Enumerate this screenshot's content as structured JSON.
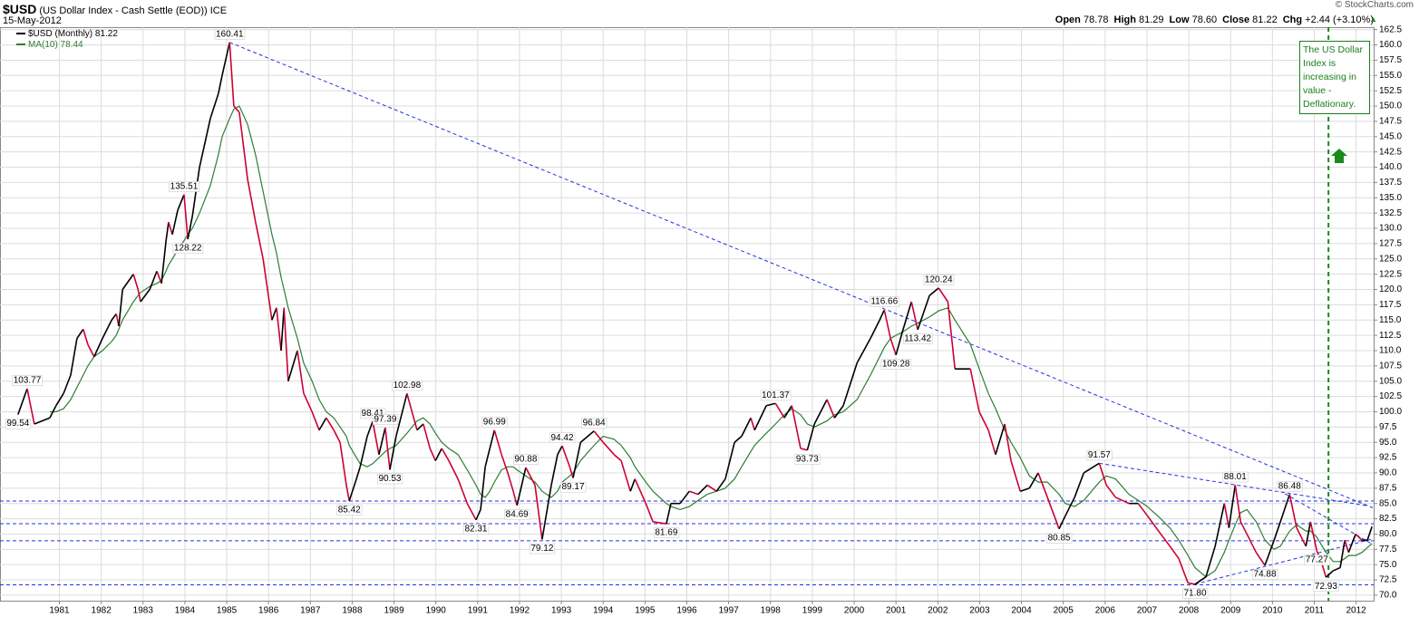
{
  "header": {
    "symbol": "$USD",
    "description": "(US Dollar Index - Cash Settle (EOD))",
    "exchange": "ICE",
    "date": "15-May-2012",
    "copyright": "© StockCharts.com",
    "quote": [
      {
        "label": "Open",
        "value": "78.78"
      },
      {
        "label": "High",
        "value": "81.29"
      },
      {
        "label": "Low",
        "value": "78.60"
      },
      {
        "label": "Close",
        "value": "81.22"
      },
      {
        "label": "Chg",
        "value": "+2.44 (+3.10%)"
      }
    ],
    "note": "The US Dollar Index is increasing in value - Deflationary."
  },
  "chart_data": {
    "type": "line",
    "up_color": "#000000",
    "down_color": "#cc0033",
    "grid": true,
    "x": [
      1980.01,
      1980.23,
      1980.4,
      1980.77,
      1980.92,
      1981.1,
      1981.27,
      1981.42,
      1981.57,
      1981.68,
      1981.83,
      1982.03,
      1982.25,
      1982.36,
      1982.42,
      1982.51,
      1982.77,
      1982.88,
      1982.94,
      1983.16,
      1983.33,
      1983.44,
      1983.55,
      1983.61,
      1983.7,
      1983.83,
      1983.98,
      1984.07,
      1984.18,
      1984.35,
      1984.61,
      1984.8,
      1984.89,
      1985.07,
      1985.17,
      1985.3,
      1985.5,
      1985.69,
      1985.87,
      1986.08,
      1986.19,
      1986.3,
      1986.37,
      1986.47,
      1986.69,
      1986.84,
      1987.04,
      1987.21,
      1987.38,
      1987.56,
      1987.71,
      1987.86,
      1987.93,
      1988.1,
      1988.19,
      1988.36,
      1988.49,
      1988.64,
      1988.79,
      1988.9,
      1989.05,
      1989.31,
      1989.55,
      1989.7,
      1989.86,
      1989.99,
      1990.14,
      1990.31,
      1990.53,
      1990.75,
      1990.96,
      1991.07,
      1991.18,
      1991.29,
      1991.4,
      1991.57,
      1991.72,
      1991.85,
      1991.94,
      1992.15,
      1992.37,
      1992.54,
      1992.76,
      1992.91,
      1993.02,
      1993.2,
      1993.28,
      1993.46,
      1993.78,
      1994.0,
      1994.26,
      1994.43,
      1994.65,
      1994.76,
      1995.02,
      1995.19,
      1995.51,
      1995.62,
      1995.84,
      1996.06,
      1996.27,
      1996.49,
      1996.71,
      1996.92,
      1997.14,
      1997.31,
      1997.53,
      1997.62,
      1997.9,
      1998.12,
      1998.33,
      1998.51,
      1998.72,
      1998.88,
      1999.05,
      1999.35,
      1999.53,
      1999.74,
      2000.07,
      2000.39,
      2000.61,
      2000.72,
      2000.87,
      2001.0,
      2001.15,
      2001.37,
      2001.52,
      2001.8,
      2002.02,
      2002.24,
      2002.41,
      2002.78,
      2002.99,
      2003.21,
      2003.38,
      2003.6,
      2003.75,
      2003.97,
      2004.19,
      2004.4,
      2004.62,
      2004.9,
      2005.05,
      2005.27,
      2005.49,
      2005.86,
      2006.03,
      2006.25,
      2006.57,
      2006.79,
      2007.01,
      2007.33,
      2007.55,
      2007.76,
      2007.98,
      2008.15,
      2008.41,
      2008.63,
      2008.85,
      2008.96,
      2009.11,
      2009.24,
      2009.39,
      2009.61,
      2009.82,
      2010.04,
      2010.19,
      2010.41,
      2010.58,
      2010.8,
      2010.91,
      2011.06,
      2011.19,
      2011.28,
      2011.45,
      2011.62,
      2011.73,
      2011.82,
      2011.99,
      2012.14,
      2012.27,
      2012.38
    ],
    "series": [
      {
        "name": "$USD (Monthly) 81.22",
        "color": "#000000",
        "values": [
          99.54,
          103.77,
          98,
          99,
          101,
          103,
          106,
          112,
          113.5,
          111,
          109,
          112,
          115,
          116,
          114,
          120,
          122.5,
          120,
          118,
          120,
          123,
          121,
          128,
          131,
          129,
          133,
          135.51,
          128.22,
          132,
          140,
          148,
          152,
          155,
          160.41,
          150,
          149,
          138,
          131,
          125,
          115,
          117,
          110,
          117,
          105,
          110,
          103,
          100,
          97,
          99,
          97,
          95,
          88,
          85.42,
          89,
          91,
          96,
          98.41,
          93,
          97.39,
          90.53,
          96,
          102.98,
          97,
          98,
          94,
          92,
          94,
          92,
          89,
          85,
          82.31,
          84,
          91,
          94,
          96.99,
          93,
          90,
          87,
          84.69,
          90.88,
          88,
          79.12,
          88,
          93,
          94.42,
          91,
          89.17,
          95,
          96.84,
          95,
          93,
          92,
          87,
          89,
          85,
          82,
          81.69,
          85,
          85,
          87,
          86.5,
          88,
          87,
          89,
          95,
          96,
          99,
          97,
          101,
          101.37,
          99,
          101,
          94,
          93.73,
          98,
          102,
          99,
          101,
          108,
          112,
          115,
          116.66,
          112,
          109.28,
          113,
          118,
          113.42,
          119,
          120.24,
          118,
          107,
          107,
          100,
          97,
          93,
          98,
          92,
          87,
          87.5,
          90,
          86,
          80.85,
          83,
          86,
          90,
          91.57,
          88,
          86,
          85,
          85,
          83,
          80,
          78,
          76,
          72,
          71.8,
          73,
          78,
          85,
          81,
          88.01,
          82,
          80,
          77,
          74.88,
          79,
          82,
          86.48,
          81,
          78,
          82,
          77.27,
          75,
          72.93,
          74,
          74.5,
          79,
          77,
          80,
          79,
          79,
          81.22
        ]
      },
      {
        "name": "MA(10) 78.44",
        "color": "#2e7d32",
        "values": [
          null,
          null,
          null,
          100,
          100,
          100.5,
          102,
          104,
          106,
          107.5,
          109,
          110,
          111.5,
          112.5,
          113.5,
          115,
          118,
          119,
          119.5,
          120.5,
          121,
          121.5,
          123,
          124,
          125,
          126.5,
          128,
          129,
          130,
          132.5,
          137,
          142,
          145,
          148,
          149.5,
          150,
          147,
          142,
          136,
          129,
          126,
          122,
          120,
          117,
          112,
          108,
          105,
          102,
          100,
          99,
          97.5,
          96,
          94.5,
          92.5,
          91.5,
          91,
          91.5,
          92.5,
          93.5,
          94,
          94.5,
          96.5,
          98.5,
          99,
          98,
          96.5,
          95,
          94,
          93,
          90.5,
          88,
          86.5,
          86,
          87,
          88.5,
          90.5,
          91,
          91,
          90.5,
          89.5,
          88.5,
          87,
          86,
          87,
          88.5,
          89.5,
          90,
          92,
          94.5,
          96,
          95.5,
          94.5,
          92.5,
          91,
          88.5,
          87,
          85,
          84.5,
          84,
          84.5,
          85.5,
          86.5,
          87,
          87.5,
          89,
          91,
          93.5,
          94.5,
          96.5,
          98,
          99.5,
          100.5,
          99.5,
          98,
          97.5,
          98.5,
          99.5,
          100,
          102,
          106,
          109,
          110.5,
          112,
          112.5,
          113,
          114,
          114.5,
          115.5,
          116.5,
          117,
          115,
          111,
          107,
          103,
          100.5,
          97,
          95,
          92.5,
          89.5,
          88.5,
          88.5,
          86.5,
          85,
          84.5,
          85.5,
          88.5,
          89.5,
          89,
          86.5,
          85.5,
          84.5,
          82.5,
          81,
          79,
          76.5,
          74.5,
          73,
          74,
          77,
          79,
          81.5,
          83.5,
          84,
          82,
          79,
          77.5,
          78,
          80.5,
          81.5,
          80.5,
          80.5,
          79.5,
          78,
          77,
          75.5,
          75.5,
          76,
          76.5,
          76.5,
          77,
          77.8,
          78.44
        ]
      }
    ],
    "annotations": [
      {
        "label": "99.54",
        "value": 99.54,
        "x": 1980.01
      },
      {
        "label": "103.77",
        "value": 103.77,
        "x": 1980.23
      },
      {
        "label": "135.51",
        "value": 135.51,
        "x": 1983.98
      },
      {
        "label": "128.22",
        "value": 128.22,
        "x": 1984.07
      },
      {
        "label": "160.41",
        "value": 160.41,
        "x": 1985.07
      },
      {
        "label": "85.42",
        "value": 85.42,
        "x": 1987.93
      },
      {
        "label": "98.41",
        "value": 98.41,
        "x": 1988.49
      },
      {
        "label": "97.39",
        "value": 97.39,
        "x": 1988.79
      },
      {
        "label": "90.53",
        "value": 90.53,
        "x": 1988.9
      },
      {
        "label": "102.98",
        "value": 102.98,
        "x": 1989.31
      },
      {
        "label": "82.31",
        "value": 82.31,
        "x": 1990.96
      },
      {
        "label": "96.99",
        "value": 96.99,
        "x": 1991.4
      },
      {
        "label": "84.69",
        "value": 84.69,
        "x": 1991.94
      },
      {
        "label": "90.88",
        "value": 90.88,
        "x": 1992.15
      },
      {
        "label": "79.12",
        "value": 79.12,
        "x": 1992.54
      },
      {
        "label": "94.42",
        "value": 94.42,
        "x": 1993.02
      },
      {
        "label": "89.17",
        "value": 89.17,
        "x": 1993.28
      },
      {
        "label": "96.84",
        "value": 96.84,
        "x": 1993.78
      },
      {
        "label": "81.69",
        "value": 81.69,
        "x": 1995.51
      },
      {
        "label": "101.37",
        "value": 101.37,
        "x": 1998.12
      },
      {
        "label": "93.73",
        "value": 93.73,
        "x": 1998.88
      },
      {
        "label": "116.66",
        "value": 116.66,
        "x": 2000.72
      },
      {
        "label": "109.28",
        "value": 109.28,
        "x": 2001.0
      },
      {
        "label": "113.42",
        "value": 113.42,
        "x": 2001.52
      },
      {
        "label": "120.24",
        "value": 120.24,
        "x": 2002.02
      },
      {
        "label": "80.85",
        "value": 80.85,
        "x": 2004.9
      },
      {
        "label": "91.57",
        "value": 91.57,
        "x": 2005.86
      },
      {
        "label": "71.80",
        "value": 71.8,
        "x": 2008.15
      },
      {
        "label": "88.01",
        "value": 88.01,
        "x": 2009.11
      },
      {
        "label": "74.88",
        "value": 74.88,
        "x": 2009.82
      },
      {
        "label": "86.48",
        "value": 86.48,
        "x": 2010.41
      },
      {
        "label": "77.27",
        "value": 77.27,
        "x": 2011.06
      },
      {
        "label": "72.93",
        "value": 72.93,
        "x": 2011.28
      }
    ],
    "hlines": [
      85.4,
      81.7,
      78.9,
      71.7
    ],
    "trendlines": [
      [
        1985.07,
        160.41,
        2012.4,
        84.3
      ],
      [
        2005.86,
        91.57,
        2012.3,
        84.6
      ],
      [
        2010.3,
        86.6,
        2012.4,
        78.3
      ],
      [
        2008.15,
        71.8,
        2012.4,
        79.2
      ]
    ],
    "trend_color": "#2233dd",
    "signal_x": 2011.34,
    "signal_color": "#1a8a1a",
    "xlim": [
      1979.58,
      2012.42
    ],
    "xticks": [
      1981,
      1982,
      1983,
      1984,
      1985,
      1986,
      1987,
      1988,
      1989,
      1990,
      1991,
      1992,
      1993,
      1994,
      1995,
      1996,
      1997,
      1998,
      1999,
      2000,
      2001,
      2002,
      2003,
      2004,
      2005,
      2006,
      2007,
      2008,
      2009,
      2010,
      2011,
      2012
    ],
    "ylim": [
      69.1,
      162.9
    ],
    "yticks": [
      {
        "value": 70,
        "label": "70.0"
      },
      {
        "value": 72.5,
        "label": "72.5"
      },
      {
        "value": 75,
        "label": "75.0"
      },
      {
        "value": 77.5,
        "label": "77.5"
      },
      {
        "value": 80,
        "label": "80.0"
      },
      {
        "value": 82.5,
        "label": "82.5"
      },
      {
        "value": 85,
        "label": "85.0"
      },
      {
        "value": 87.5,
        "label": "87.5"
      },
      {
        "value": 90,
        "label": "90.0"
      },
      {
        "value": 92.5,
        "label": "92.5"
      },
      {
        "value": 95,
        "label": "95.0"
      },
      {
        "value": 97.5,
        "label": "97.5"
      },
      {
        "value": 100,
        "label": "100.0"
      },
      {
        "value": 102.5,
        "label": "102.5"
      },
      {
        "value": 105,
        "label": "105.0"
      },
      {
        "value": 107.5,
        "label": "107.5"
      },
      {
        "value": 110,
        "label": "110.0"
      },
      {
        "value": 112.5,
        "label": "112.5"
      },
      {
        "value": 115,
        "label": "115.0"
      },
      {
        "value": 117.5,
        "label": "117.5"
      },
      {
        "value": 120,
        "label": "120.0"
      },
      {
        "value": 122.5,
        "label": "122.5"
      },
      {
        "value": 125,
        "label": "125.0"
      },
      {
        "value": 127.5,
        "label": "127.5"
      },
      {
        "value": 130,
        "label": "130.0"
      },
      {
        "value": 132.5,
        "label": "132.5"
      },
      {
        "value": 135,
        "label": "135.0"
      },
      {
        "value": 137.5,
        "label": "137.5"
      },
      {
        "value": 140,
        "label": "140.0"
      },
      {
        "value": 142.5,
        "label": "142.5"
      },
      {
        "value": 145,
        "label": "145.0"
      },
      {
        "value": 147.5,
        "label": "147.5"
      },
      {
        "value": 150,
        "label": "150.0"
      },
      {
        "value": 152.5,
        "label": "152.5"
      },
      {
        "value": 155,
        "label": "155.0"
      },
      {
        "value": 157.5,
        "label": "157.5"
      },
      {
        "value": 160,
        "label": "160.0"
      },
      {
        "value": 162.5,
        "label": "162.5"
      }
    ]
  }
}
